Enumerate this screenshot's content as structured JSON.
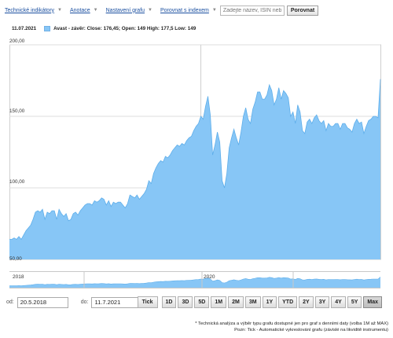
{
  "toolbar": {
    "technical_indicators": "Technické indikátory",
    "annotation": "Anotace",
    "graph_settings": "Nastavení grafu",
    "compare_index": "Porovnat s indexem",
    "search_placeholder": "Zadejte název, ISIN nebo",
    "compare_button": "Porovnat"
  },
  "legend": {
    "date": "11.07.2021",
    "series_text": "Avast - závěr: Close: 176,45; Open: 149 High: 177,5 Low: 149",
    "series_color": "#87c6f6"
  },
  "y_axis": {
    "labels": [
      "200,00",
      "150,00",
      "100,00",
      "50,00"
    ]
  },
  "navigator": {
    "year_left": "2018",
    "year_mid": "2020"
  },
  "range": {
    "from_label": "od:",
    "from_value": "20.5.2018",
    "to_label": "do:",
    "to_value": "11.7.2021"
  },
  "periods": {
    "tick": "Tick",
    "buttons": [
      "1D",
      "3D",
      "5D",
      "1M",
      "2M",
      "3M",
      "1Y",
      "YTD",
      "2Y",
      "3Y",
      "4Y",
      "5Y",
      "Max"
    ],
    "active": "Max"
  },
  "footnote": {
    "line1": "* Technická analýza a výběr typu grafu dostupné jen pro graf s denními daty (volba 1M až MAX)",
    "line2": "Pozn: Tick - Automatické vykreslování grafu (závislé na likviditě instrumentu)"
  },
  "chart_data": {
    "type": "area",
    "series": [
      {
        "name": "Avast - závěr",
        "values": [
          64,
          64,
          65,
          64,
          66,
          64,
          67,
          70,
          72,
          74,
          78,
          83,
          84,
          83,
          85,
          78,
          83,
          82,
          84,
          84,
          78,
          85,
          82,
          80,
          82,
          77,
          78,
          82,
          83,
          81,
          84,
          86,
          88,
          89,
          89,
          88,
          91,
          90,
          91,
          93,
          92,
          88,
          91,
          87,
          90,
          89,
          90,
          90,
          88,
          86,
          89,
          95,
          94,
          93,
          95,
          92,
          94,
          96,
          99,
          105,
          103,
          110,
          114,
          117,
          119,
          118,
          122,
          121,
          123,
          126,
          128,
          130,
          129,
          131,
          130,
          133,
          135,
          136,
          140,
          143,
          145,
          150,
          148,
          157,
          164,
          151,
          123,
          130,
          139,
          132,
          105,
          100,
          110,
          128,
          135,
          141,
          135,
          130,
          139,
          150,
          156,
          148,
          145,
          155,
          160,
          167,
          167,
          162,
          162,
          165,
          172,
          168,
          158,
          162,
          170,
          162,
          168,
          166,
          163,
          150,
          153,
          145,
          158,
          153,
          140,
          138,
          146,
          148,
          145,
          149,
          151,
          147,
          145,
          147,
          140,
          145,
          143,
          143,
          145,
          145,
          141,
          145,
          145,
          142,
          141,
          139,
          145,
          148,
          145,
          146,
          138,
          143,
          147,
          148,
          150,
          150,
          149,
          176
        ]
      }
    ],
    "ylim": [
      50,
      200
    ],
    "x_labels": [],
    "grid": true,
    "verticals": [
      "2020"
    ],
    "color": "#87c6f6"
  }
}
